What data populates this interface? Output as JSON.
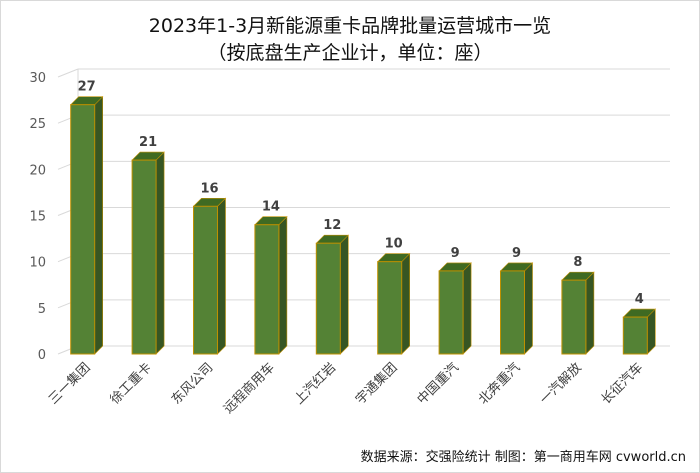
{
  "chart_data": {
    "type": "bar",
    "title": "2023年1-3月新能源重卡品牌批量运营城市一览",
    "subtitle": "（按底盘生产企业计，单位：座）",
    "categories": [
      "三一集团",
      "徐工重卡",
      "东风公司",
      "远程商用车",
      "上汽红岩",
      "宇通集团",
      "中国重汽",
      "北奔重汽",
      "一汽解放",
      "长征汽车"
    ],
    "values": [
      27,
      21,
      16,
      14,
      12,
      10,
      9,
      9,
      8,
      4
    ],
    "ylim": [
      0,
      30
    ],
    "yticks": [
      0,
      5,
      10,
      15,
      20,
      25,
      30
    ],
    "grid": true,
    "legend": "none",
    "colors": {
      "bar_front": "#548235",
      "bar_side": "#375623",
      "bar_top": "#3f6a22",
      "bar_border": "#bf9000",
      "grid": "#d9d9d9",
      "axis_text": "#595959",
      "label_text": "#404040"
    }
  },
  "footer": {
    "source": "数据来源：交强险统计 制图：第一商用车网 cvworld.cn"
  }
}
